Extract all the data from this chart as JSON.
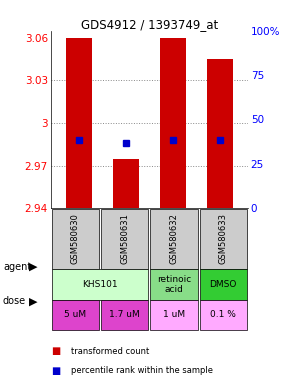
{
  "title": "GDS4912 / 1393749_at",
  "samples": [
    "GSM580630",
    "GSM580631",
    "GSM580632",
    "GSM580633"
  ],
  "bar_bottoms": [
    2.94,
    2.94,
    2.94,
    2.94
  ],
  "bar_tops": [
    3.06,
    2.975,
    3.06,
    3.045
  ],
  "percentile_values": [
    2.988,
    2.986,
    2.988,
    2.988
  ],
  "ylim": [
    2.94,
    3.065
  ],
  "yticks": [
    2.94,
    2.97,
    3.0,
    3.03,
    3.06
  ],
  "ytick_labels": [
    "2.94",
    "2.97",
    "3",
    "3.03",
    "3.06"
  ],
  "right_yticks": [
    0,
    25,
    50,
    75,
    100
  ],
  "right_ytick_labels": [
    "0",
    "25",
    "50",
    "75",
    "100%"
  ],
  "bar_color": "#cc0000",
  "percentile_color": "#0000cc",
  "grid_color": "#888888",
  "sample_label_bg": "#cccccc",
  "agent_groups": [
    {
      "label": "KHS101",
      "start": 0,
      "end": 2,
      "color": "#ccffcc"
    },
    {
      "label": "retinoic\nacid",
      "start": 2,
      "end": 3,
      "color": "#88dd88"
    },
    {
      "label": "DMSO",
      "start": 3,
      "end": 4,
      "color": "#33cc33"
    }
  ],
  "doses": [
    "5 uM",
    "1.7 uM",
    "1 uM",
    "0.1 %"
  ],
  "dose_colors": [
    "#dd44cc",
    "#dd44cc",
    "#ffaaff",
    "#ffaaff"
  ]
}
